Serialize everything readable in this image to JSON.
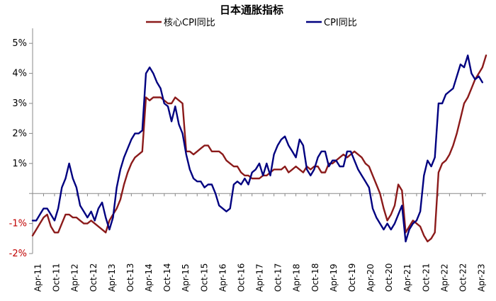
{
  "chart_data": {
    "type": "line",
    "title": "日本通胀指标",
    "xlabel": "",
    "ylabel": "",
    "ylim": [
      -2,
      5.5
    ],
    "y_ticks": [
      {
        "value": -2,
        "label": "-2%"
      },
      {
        "value": -1,
        "label": "-1%"
      },
      {
        "value": 0,
        "label": ""
      },
      {
        "value": 1,
        "label": "1%"
      },
      {
        "value": 2,
        "label": "2%"
      },
      {
        "value": 3,
        "label": "3%"
      },
      {
        "value": 4,
        "label": "4%"
      },
      {
        "value": 5,
        "label": "5%"
      }
    ],
    "x_ticks": [
      "Apr-11",
      "Oct-11",
      "Apr-12",
      "Oct-12",
      "Apr-13",
      "Oct-13",
      "Apr-14",
      "Oct-14",
      "Apr-15",
      "Oct-15",
      "Apr-16",
      "Oct-16",
      "Apr-17",
      "Oct-17",
      "Apr-18",
      "Oct-18",
      "Apr-19",
      "Oct-19",
      "Apr-20",
      "Oct-20",
      "Apr-21",
      "Oct-21",
      "Apr-22",
      "Oct-22",
      "Apr-23"
    ],
    "legend_position": "top",
    "grid": false,
    "series": [
      {
        "name": "核心CPI同比",
        "color": "#8b1a1a",
        "values": [
          -1.4,
          -1.2,
          -1.0,
          -0.8,
          -0.7,
          -1.1,
          -1.3,
          -1.3,
          -1.0,
          -0.7,
          -0.7,
          -0.8,
          -0.8,
          -0.9,
          -1.0,
          -1.0,
          -0.9,
          -1.0,
          -1.1,
          -1.2,
          -1.3,
          -0.9,
          -0.7,
          -0.5,
          -0.2,
          0.3,
          0.7,
          1.0,
          1.2,
          1.3,
          1.4,
          3.2,
          3.1,
          3.2,
          3.2,
          3.2,
          3.1,
          3.0,
          3.0,
          3.2,
          3.1,
          3.0,
          1.4,
          1.4,
          1.3,
          1.4,
          1.5,
          1.6,
          1.6,
          1.4,
          1.4,
          1.4,
          1.3,
          1.1,
          1.0,
          0.9,
          0.9,
          0.7,
          0.6,
          0.6,
          0.5,
          0.5,
          0.5,
          0.6,
          0.6,
          0.7,
          0.8,
          0.8,
          0.8,
          0.9,
          0.7,
          0.8,
          0.9,
          0.8,
          0.7,
          0.9,
          0.8,
          0.9,
          0.9,
          0.7,
          0.7,
          1.0,
          1.0,
          1.1,
          1.2,
          1.3,
          1.2,
          1.3,
          1.4,
          1.3,
          1.2,
          1.0,
          0.9,
          0.6,
          0.3,
          0.0,
          -0.5,
          -0.9,
          -0.7,
          -0.4,
          0.3,
          0.1,
          -1.3,
          -1.1,
          -0.9,
          -1.0,
          -1.1,
          -1.4,
          -1.6,
          -1.5,
          -1.3,
          0.7,
          1.0,
          1.1,
          1.3,
          1.6,
          2.0,
          2.5,
          3.0,
          3.2,
          3.5,
          3.8,
          4.0,
          4.2,
          4.6
        ]
      },
      {
        "name": "CPI同比",
        "color": "#000080",
        "values": [
          -0.9,
          -0.9,
          -0.7,
          -0.5,
          -0.5,
          -0.7,
          -0.9,
          -0.5,
          0.2,
          0.5,
          1.0,
          0.5,
          0.2,
          -0.4,
          -0.6,
          -0.8,
          -0.6,
          -0.9,
          -0.5,
          -0.3,
          -0.8,
          -1.2,
          -0.8,
          0.2,
          0.8,
          1.2,
          1.5,
          1.8,
          2.0,
          2.0,
          2.1,
          4.0,
          4.2,
          4.0,
          3.7,
          3.5,
          3.0,
          2.9,
          2.4,
          2.9,
          2.3,
          2.0,
          1.3,
          0.8,
          0.5,
          0.4,
          0.4,
          0.2,
          0.3,
          0.3,
          0.0,
          -0.4,
          -0.5,
          -0.6,
          -0.5,
          0.3,
          0.4,
          0.3,
          0.5,
          0.3,
          0.7,
          0.8,
          1.0,
          0.6,
          1.0,
          0.6,
          1.3,
          1.6,
          1.8,
          1.9,
          1.6,
          1.4,
          1.2,
          1.8,
          1.6,
          0.8,
          0.6,
          0.8,
          1.2,
          1.4,
          1.4,
          0.9,
          1.1,
          1.1,
          0.9,
          0.9,
          1.4,
          1.4,
          1.1,
          0.8,
          0.6,
          0.4,
          0.2,
          -0.5,
          -0.8,
          -1.0,
          -1.2,
          -1.0,
          -1.2,
          -1.0,
          -0.7,
          -0.4,
          -1.6,
          -1.2,
          -1.0,
          -0.9,
          -0.6,
          0.6,
          1.1,
          0.9,
          1.2,
          3.0,
          3.0,
          3.3,
          3.4,
          3.5,
          3.9,
          4.3,
          4.2,
          4.6,
          4.0,
          3.8,
          3.9,
          3.7
        ]
      }
    ]
  }
}
